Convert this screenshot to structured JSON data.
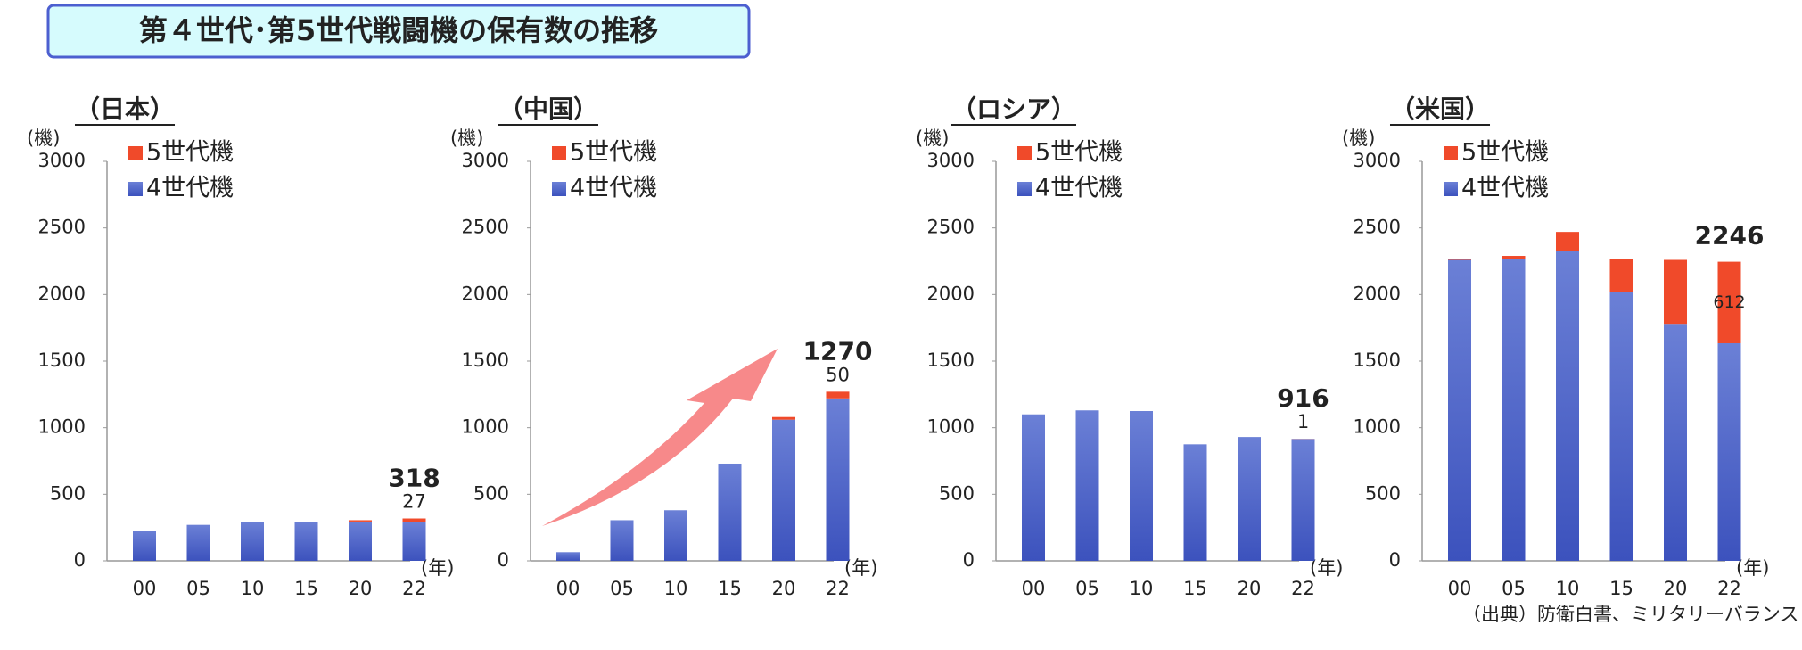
{
  "header": {
    "title": "第４世代･第5世代戦闘機の保有数の推移"
  },
  "chart_data": [
    {
      "type": "bar",
      "stacked": true,
      "title": "（日本）",
      "y_label": "(機)",
      "x_label": "(年)",
      "categories": [
        "00",
        "05",
        "10",
        "15",
        "20",
        "22"
      ],
      "ylim": [
        0,
        3000
      ],
      "yticks": [
        0,
        500,
        1000,
        1500,
        2000,
        2500,
        3000
      ],
      "series": [
        {
          "name": "5世代機",
          "color": "#f04a2a",
          "values": [
            0,
            0,
            0,
            0,
            10,
            27
          ],
          "value_labels": [
            null,
            null,
            null,
            null,
            null,
            "27"
          ]
        },
        {
          "name": "4世代機",
          "color": "#4f67cc",
          "values": [
            225,
            270,
            290,
            290,
            295,
            291
          ]
        }
      ],
      "total": 318
    },
    {
      "type": "bar",
      "stacked": true,
      "title": "（中国）",
      "y_label": "(機)",
      "x_label": "(年)",
      "categories": [
        "00",
        "05",
        "10",
        "15",
        "20",
        "22"
      ],
      "ylim": [
        0,
        3000
      ],
      "yticks": [
        0,
        500,
        1000,
        1500,
        2000,
        2500,
        3000
      ],
      "series": [
        {
          "name": "5世代機",
          "color": "#f04a2a",
          "values": [
            0,
            0,
            0,
            0,
            20,
            50
          ],
          "value_labels": [
            null,
            null,
            null,
            null,
            null,
            "50"
          ]
        },
        {
          "name": "4世代機",
          "color": "#4f67cc",
          "values": [
            65,
            305,
            380,
            730,
            1060,
            1220
          ]
        }
      ],
      "total": 1270
    },
    {
      "type": "bar",
      "stacked": true,
      "title": "（ロシア）",
      "y_label": "(機)",
      "x_label": "(年)",
      "categories": [
        "00",
        "05",
        "10",
        "15",
        "20",
        "22"
      ],
      "ylim": [
        0,
        3000
      ],
      "yticks": [
        0,
        500,
        1000,
        1500,
        2000,
        2500,
        3000
      ],
      "series": [
        {
          "name": "5世代機",
          "color": "#f04a2a",
          "values": [
            0,
            0,
            0,
            0,
            0,
            1
          ],
          "value_labels": [
            null,
            null,
            null,
            null,
            null,
            "1"
          ]
        },
        {
          "name": "4世代機",
          "color": "#4f67cc",
          "values": [
            1100,
            1130,
            1125,
            875,
            930,
            915
          ]
        }
      ],
      "total": 916
    },
    {
      "type": "bar",
      "stacked": true,
      "title": "（米国）",
      "y_label": "(機)",
      "x_label": "(年)",
      "categories": [
        "00",
        "05",
        "10",
        "15",
        "20",
        "22"
      ],
      "ylim": [
        0,
        3000
      ],
      "yticks": [
        0,
        500,
        1000,
        1500,
        2000,
        2500,
        3000
      ],
      "series": [
        {
          "name": "5世代機",
          "color": "#f04a2a",
          "values": [
            10,
            20,
            140,
            250,
            480,
            612
          ],
          "value_labels": [
            null,
            null,
            null,
            null,
            null,
            "612"
          ]
        },
        {
          "name": "4世代機",
          "color": "#4f67cc",
          "values": [
            2260,
            2270,
            2330,
            2020,
            1780,
            1634
          ]
        }
      ],
      "total": 2246
    }
  ],
  "source": "（出典）防衛白書、ミリタリーバランス"
}
